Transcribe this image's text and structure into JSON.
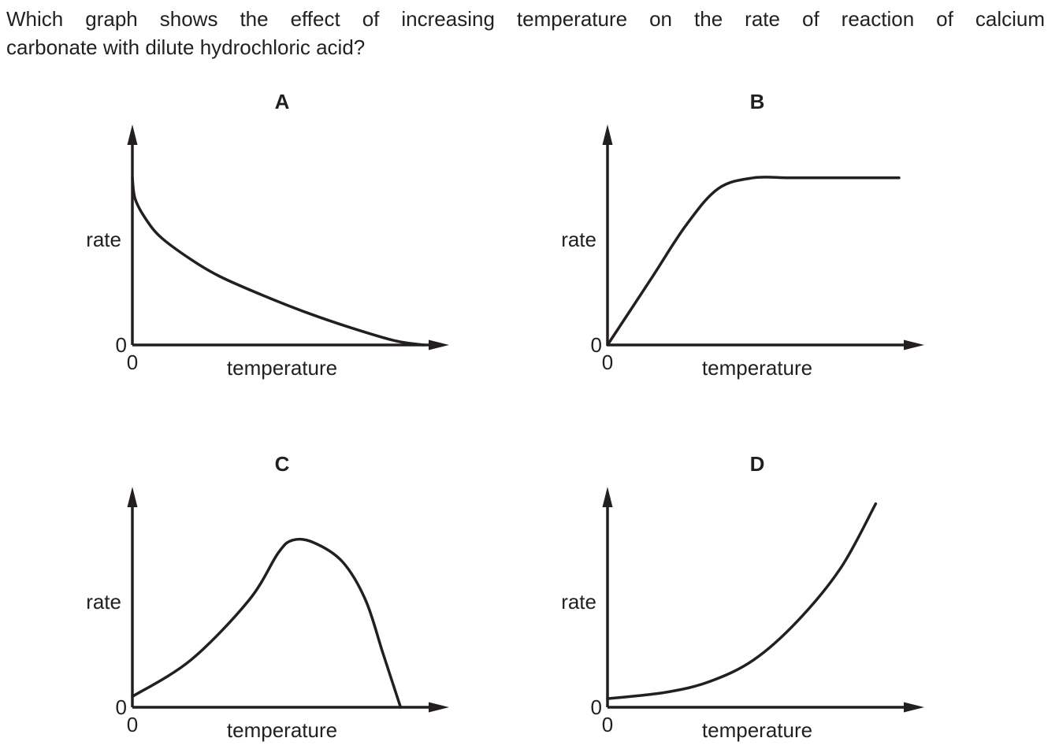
{
  "question": {
    "line1": "Which graph shows the effect of increasing temperature on the rate of reaction of calcium",
    "line2": "carbonate with dilute hydrochloric acid?"
  },
  "chart_data": [
    {
      "type": "line",
      "label": "A",
      "xlabel": "temperature",
      "ylabel": "rate",
      "x_origin_label": "0",
      "y_origin_label": "0",
      "series": [
        {
          "x": [
            0,
            0.01,
            0.05,
            0.1,
            0.2,
            0.3,
            0.45,
            0.6,
            0.75,
            0.9,
            1.0
          ],
          "y": [
            0.78,
            0.68,
            0.58,
            0.5,
            0.4,
            0.32,
            0.23,
            0.15,
            0.08,
            0.02,
            0.0
          ]
        }
      ]
    },
    {
      "type": "line",
      "label": "B",
      "xlabel": "temperature",
      "ylabel": "rate",
      "x_origin_label": "0",
      "y_origin_label": "0",
      "series": [
        {
          "x": [
            0,
            0.15,
            0.27,
            0.38,
            0.5,
            0.62,
            0.75,
            0.88,
            1.0
          ],
          "y": [
            0,
            0.31,
            0.56,
            0.73,
            0.78,
            0.78,
            0.78,
            0.78,
            0.78
          ]
        }
      ]
    },
    {
      "type": "line",
      "label": "C",
      "xlabel": "temperature",
      "ylabel": "rate",
      "x_origin_label": "0",
      "y_origin_label": "0",
      "series": [
        {
          "x": [
            0,
            0.2,
            0.4,
            0.5,
            0.55,
            0.62,
            0.72,
            0.8,
            0.86,
            0.92
          ],
          "y": [
            0.05,
            0.22,
            0.5,
            0.72,
            0.78,
            0.77,
            0.68,
            0.5,
            0.25,
            0.0
          ]
        }
      ]
    },
    {
      "type": "line",
      "label": "D",
      "xlabel": "temperature",
      "ylabel": "rate",
      "x_origin_label": "0",
      "y_origin_label": "0",
      "series": [
        {
          "x": [
            0,
            0.2,
            0.35,
            0.5,
            0.65,
            0.8,
            0.92
          ],
          "y": [
            0.04,
            0.07,
            0.12,
            0.22,
            0.4,
            0.65,
            0.95
          ]
        }
      ]
    }
  ]
}
